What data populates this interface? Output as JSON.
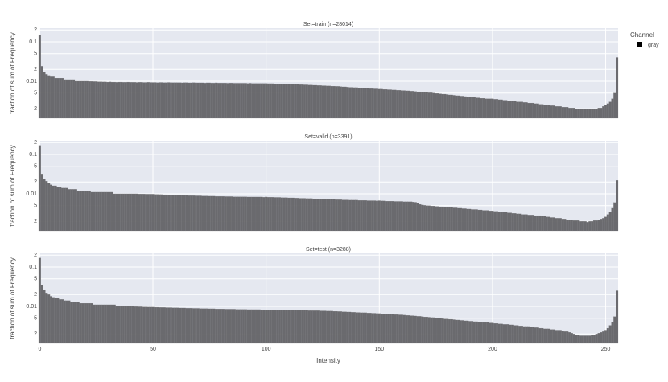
{
  "chart_data": {
    "type": "histogram",
    "xlabel": "Intensity",
    "ylabel": "fraction of sum of Frequency",
    "legend_title": "Channel",
    "legend_position": "top-right",
    "log_y": true,
    "grid": true,
    "series": [
      {
        "name": "gray",
        "color": "#636366"
      }
    ],
    "xlim": [
      -0.5,
      255.5
    ],
    "xticks": [
      0,
      50,
      100,
      150,
      200,
      250
    ],
    "ylim": [
      0.00115,
      0.222
    ],
    "yticks": [
      {
        "value": 0.002,
        "label": "2"
      },
      {
        "value": 0.005,
        "label": "5"
      },
      0.01,
      {
        "value": 0.02,
        "label": "2"
      },
      {
        "value": 0.05,
        "label": "5"
      },
      0.1,
      {
        "value": 0.2,
        "label": "2"
      }
    ],
    "bins": [
      -0.5,
      0.5,
      1.5,
      2.5,
      3.5,
      4.5,
      5.5,
      6.5,
      7.5,
      8.5,
      9.5,
      10.5,
      11.5,
      12.5,
      13.5,
      14.5,
      15.5,
      16.5,
      17.5,
      18.5,
      19.5,
      20.5,
      21.5,
      22.5,
      23.5,
      24.5,
      25.5,
      26.5,
      27.5,
      28.5,
      29.5,
      30.5,
      31.5,
      32.5,
      33.5,
      34.5,
      35.5,
      36.5,
      37.5,
      38.5,
      39.5,
      40.5,
      41.5,
      42.5,
      43.5,
      44.5,
      45.5,
      46.5,
      47.5,
      48.5,
      49.5,
      50.5,
      51.5,
      52.5,
      53.5,
      54.5,
      55.5,
      56.5,
      57.5,
      58.5,
      59.5,
      60.5,
      61.5,
      62.5,
      63.5,
      64.5,
      65.5,
      66.5,
      67.5,
      68.5,
      69.5,
      70.5,
      71.5,
      72.5,
      73.5,
      74.5,
      75.5,
      76.5,
      77.5,
      78.5,
      79.5,
      80.5,
      81.5,
      82.5,
      83.5,
      84.5,
      85.5,
      86.5,
      87.5,
      88.5,
      89.5,
      90.5,
      91.5,
      92.5,
      93.5,
      94.5,
      95.5,
      96.5,
      97.5,
      98.5,
      99.5,
      100.5,
      101.5,
      102.5,
      103.5,
      104.5,
      105.5,
      106.5,
      107.5,
      108.5,
      109.5,
      110.5,
      111.5,
      112.5,
      113.5,
      114.5,
      115.5,
      116.5,
      117.5,
      118.5,
      119.5,
      120.5,
      121.5,
      122.5,
      123.5,
      124.5,
      125.5,
      126.5,
      127.5,
      128.5,
      129.5,
      130.5,
      131.5,
      132.5,
      133.5,
      134.5,
      135.5,
      136.5,
      137.5,
      138.5,
      139.5,
      140.5,
      141.5,
      142.5,
      143.5,
      144.5,
      145.5,
      146.5,
      147.5,
      148.5,
      149.5,
      150.5,
      151.5,
      152.5,
      153.5,
      154.5,
      155.5,
      156.5,
      157.5,
      158.5,
      159.5,
      160.5,
      161.5,
      162.5,
      163.5,
      164.5,
      165.5,
      166.5,
      167.5,
      168.5,
      169.5,
      170.5,
      171.5,
      172.5,
      173.5,
      174.5,
      175.5,
      176.5,
      177.5,
      178.5,
      179.5,
      180.5,
      181.5,
      182.5,
      183.5,
      184.5,
      185.5,
      186.5,
      187.5,
      188.5,
      189.5,
      190.5,
      191.5,
      192.5,
      193.5,
      194.5,
      195.5,
      196.5,
      197.5,
      198.5,
      199.5,
      200.5,
      201.5,
      202.5,
      203.5,
      204.5,
      205.5,
      206.5,
      207.5,
      208.5,
      209.5,
      210.5,
      211.5,
      212.5,
      213.5,
      214.5,
      215.5,
      216.5,
      217.5,
      218.5,
      219.5,
      220.5,
      221.5,
      222.5,
      223.5,
      224.5,
      225.5,
      226.5,
      227.5,
      228.5,
      229.5,
      230.5,
      231.5,
      232.5,
      233.5,
      234.5,
      235.5,
      236.5,
      237.5,
      238.5,
      239.5,
      240.5,
      241.5,
      242.5,
      243.5,
      244.5,
      245.5,
      246.5,
      247.5,
      248.5,
      249.5,
      250.5,
      251.5,
      252.5,
      253.5,
      254.5,
      255.5
    ],
    "facets": [
      {
        "title": "Set=train (n=28014)",
        "values": [
          0.15,
          0.024,
          0.017,
          0.015,
          0.014,
          0.013,
          0.013,
          0.012,
          0.012,
          0.012,
          0.012,
          0.011,
          0.011,
          0.011,
          0.011,
          0.011,
          0.01,
          0.01,
          0.01,
          0.01,
          0.01,
          0.01,
          0.0099,
          0.0099,
          0.0098,
          0.0098,
          0.0097,
          0.0097,
          0.0096,
          0.0096,
          0.0095,
          0.0096,
          0.0095,
          0.0095,
          0.0094,
          0.0095,
          0.0095,
          0.0094,
          0.0094,
          0.0095,
          0.0094,
          0.0094,
          0.0094,
          0.0093,
          0.0094,
          0.0094,
          0.0093,
          0.0093,
          0.0094,
          0.0093,
          0.0093,
          0.0093,
          0.0092,
          0.0093,
          0.0093,
          0.0092,
          0.0092,
          0.0093,
          0.0092,
          0.0092,
          0.0092,
          0.0092,
          0.0092,
          0.0091,
          0.0092,
          0.0092,
          0.0091,
          0.0091,
          0.0092,
          0.0091,
          0.0091,
          0.0091,
          0.0091,
          0.009,
          0.0091,
          0.0091,
          0.009,
          0.009,
          0.0091,
          0.009,
          0.009,
          0.009,
          0.009,
          0.0089,
          0.009,
          0.009,
          0.0089,
          0.0089,
          0.0089,
          0.0089,
          0.0089,
          0.0089,
          0.0088,
          0.0089,
          0.0088,
          0.0088,
          0.0088,
          0.0088,
          0.0088,
          0.0088,
          0.0088,
          0.0087,
          0.0087,
          0.0087,
          0.0086,
          0.0086,
          0.0086,
          0.0085,
          0.0085,
          0.0085,
          0.0084,
          0.0084,
          0.0083,
          0.0083,
          0.0083,
          0.0082,
          0.0082,
          0.0081,
          0.0081,
          0.008,
          0.008,
          0.0079,
          0.0079,
          0.0078,
          0.0078,
          0.0077,
          0.0077,
          0.0076,
          0.0076,
          0.0075,
          0.0075,
          0.0074,
          0.0074,
          0.0073,
          0.0072,
          0.0072,
          0.0071,
          0.007,
          0.007,
          0.0069,
          0.0069,
          0.0068,
          0.0068,
          0.0067,
          0.0066,
          0.0066,
          0.0065,
          0.0065,
          0.0064,
          0.0064,
          0.0063,
          0.0063,
          0.0062,
          0.0062,
          0.0061,
          0.0061,
          0.006,
          0.006,
          0.0059,
          0.0059,
          0.0058,
          0.0058,
          0.0057,
          0.0057,
          0.0056,
          0.0056,
          0.0055,
          0.0054,
          0.0054,
          0.0053,
          0.0053,
          0.0052,
          0.0051,
          0.0051,
          0.005,
          0.0049,
          0.0049,
          0.0048,
          0.0047,
          0.0047,
          0.0046,
          0.0045,
          0.0045,
          0.0044,
          0.0043,
          0.0043,
          0.0042,
          0.0042,
          0.0041,
          0.004,
          0.004,
          0.0039,
          0.0039,
          0.0038,
          0.0038,
          0.0037,
          0.0037,
          0.0036,
          0.0036,
          0.0036,
          0.0036,
          0.0035,
          0.0035,
          0.0034,
          0.0034,
          0.0033,
          0.0033,
          0.0032,
          0.0032,
          0.0031,
          0.0031,
          0.003,
          0.003,
          0.003,
          0.0029,
          0.0029,
          0.0028,
          0.0028,
          0.0028,
          0.0027,
          0.0027,
          0.0026,
          0.0026,
          0.0025,
          0.0025,
          0.0025,
          0.0024,
          0.0024,
          0.0023,
          0.0023,
          0.0023,
          0.0022,
          0.0022,
          0.0022,
          0.0021,
          0.0021,
          0.0021,
          0.002,
          0.002,
          0.002,
          0.002,
          0.002,
          0.002,
          0.002,
          0.002,
          0.002,
          0.002,
          0.0021,
          0.0021,
          0.0023,
          0.0025,
          0.0027,
          0.003,
          0.0036,
          0.005,
          0.04
        ]
      },
      {
        "title": "Set=valid (n=3391)",
        "values": [
          0.17,
          0.032,
          0.024,
          0.021,
          0.019,
          0.017,
          0.016,
          0.016,
          0.015,
          0.015,
          0.014,
          0.014,
          0.014,
          0.013,
          0.013,
          0.013,
          0.013,
          0.012,
          0.012,
          0.012,
          0.012,
          0.012,
          0.012,
          0.011,
          0.011,
          0.011,
          0.011,
          0.011,
          0.011,
          0.011,
          0.011,
          0.011,
          0.011,
          0.01,
          0.01,
          0.01,
          0.01,
          0.01,
          0.01,
          0.01,
          0.01,
          0.01,
          0.01,
          0.01,
          0.0099,
          0.0099,
          0.0099,
          0.0098,
          0.0098,
          0.0098,
          0.0098,
          0.0097,
          0.0097,
          0.0096,
          0.0096,
          0.0095,
          0.0095,
          0.0094,
          0.0094,
          0.0093,
          0.0093,
          0.0092,
          0.0092,
          0.0092,
          0.0091,
          0.0091,
          0.009,
          0.009,
          0.009,
          0.0089,
          0.0089,
          0.0089,
          0.0088,
          0.0088,
          0.0088,
          0.0087,
          0.0087,
          0.0087,
          0.0086,
          0.0086,
          0.0086,
          0.0086,
          0.0085,
          0.0085,
          0.0085,
          0.0085,
          0.0084,
          0.0084,
          0.0084,
          0.0084,
          0.0084,
          0.0084,
          0.0083,
          0.0083,
          0.0083,
          0.0083,
          0.0083,
          0.0083,
          0.0083,
          0.0082,
          0.0083,
          0.0082,
          0.0082,
          0.0082,
          0.0081,
          0.0081,
          0.0081,
          0.008,
          0.008,
          0.008,
          0.0079,
          0.0079,
          0.0079,
          0.0078,
          0.0078,
          0.0077,
          0.0077,
          0.0077,
          0.0076,
          0.0076,
          0.0076,
          0.0075,
          0.0075,
          0.0074,
          0.0074,
          0.0074,
          0.0073,
          0.0073,
          0.0072,
          0.0072,
          0.0072,
          0.0071,
          0.0071,
          0.0071,
          0.007,
          0.007,
          0.007,
          0.0069,
          0.0069,
          0.0069,
          0.0069,
          0.0068,
          0.0068,
          0.0068,
          0.0068,
          0.0067,
          0.0067,
          0.0067,
          0.0067,
          0.0066,
          0.0067,
          0.0066,
          0.0066,
          0.0065,
          0.0065,
          0.0065,
          0.0065,
          0.0064,
          0.0064,
          0.0064,
          0.0064,
          0.0063,
          0.0063,
          0.0063,
          0.0063,
          0.0062,
          0.0061,
          0.0058,
          0.0054,
          0.0052,
          0.0051,
          0.005,
          0.005,
          0.0049,
          0.0049,
          0.0048,
          0.0048,
          0.0047,
          0.0047,
          0.0046,
          0.0046,
          0.0045,
          0.0045,
          0.0044,
          0.0044,
          0.0043,
          0.0043,
          0.0042,
          0.0042,
          0.0041,
          0.0041,
          0.004,
          0.004,
          0.004,
          0.0039,
          0.0039,
          0.0038,
          0.0038,
          0.0038,
          0.0037,
          0.0037,
          0.0036,
          0.0036,
          0.0035,
          0.0035,
          0.0034,
          0.0034,
          0.0033,
          0.0033,
          0.0032,
          0.0032,
          0.0031,
          0.0031,
          0.003,
          0.003,
          0.003,
          0.0029,
          0.0029,
          0.0029,
          0.0028,
          0.0028,
          0.0028,
          0.0027,
          0.0027,
          0.0026,
          0.0026,
          0.0025,
          0.0025,
          0.0024,
          0.0024,
          0.0024,
          0.0023,
          0.0023,
          0.0022,
          0.0022,
          0.0022,
          0.0021,
          0.0021,
          0.0021,
          0.002,
          0.002,
          0.002,
          0.0019,
          0.002,
          0.002,
          0.0021,
          0.0021,
          0.0022,
          0.0023,
          0.0024,
          0.0026,
          0.003,
          0.0035,
          0.0043,
          0.006,
          0.022
        ]
      },
      {
        "title": "Set=test (n=3288)",
        "values": [
          0.17,
          0.035,
          0.026,
          0.022,
          0.02,
          0.018,
          0.017,
          0.016,
          0.016,
          0.015,
          0.015,
          0.014,
          0.014,
          0.014,
          0.013,
          0.013,
          0.013,
          0.013,
          0.012,
          0.012,
          0.012,
          0.012,
          0.012,
          0.012,
          0.011,
          0.011,
          0.011,
          0.011,
          0.011,
          0.011,
          0.011,
          0.011,
          0.011,
          0.011,
          0.01,
          0.01,
          0.01,
          0.01,
          0.01,
          0.01,
          0.01,
          0.01,
          0.0099,
          0.0099,
          0.0098,
          0.0098,
          0.0097,
          0.0097,
          0.0096,
          0.0096,
          0.0096,
          0.0095,
          0.0095,
          0.0094,
          0.0094,
          0.0094,
          0.0093,
          0.0093,
          0.0093,
          0.0092,
          0.0092,
          0.0092,
          0.0091,
          0.0091,
          0.0091,
          0.009,
          0.009,
          0.009,
          0.0089,
          0.0089,
          0.0089,
          0.0088,
          0.0088,
          0.0088,
          0.0088,
          0.0087,
          0.0087,
          0.0087,
          0.0086,
          0.0086,
          0.0086,
          0.0086,
          0.0085,
          0.0085,
          0.0085,
          0.0085,
          0.0085,
          0.0084,
          0.0084,
          0.0084,
          0.0084,
          0.0084,
          0.0083,
          0.0083,
          0.0083,
          0.0083,
          0.0083,
          0.0083,
          0.0082,
          0.0082,
          0.0082,
          0.0082,
          0.0082,
          0.0082,
          0.0081,
          0.0081,
          0.0081,
          0.0081,
          0.0081,
          0.008,
          0.008,
          0.008,
          0.008,
          0.008,
          0.0079,
          0.0079,
          0.0079,
          0.0079,
          0.0079,
          0.0078,
          0.0078,
          0.0078,
          0.0078,
          0.0078,
          0.0077,
          0.0077,
          0.0077,
          0.0076,
          0.0076,
          0.0076,
          0.0075,
          0.0075,
          0.0074,
          0.0074,
          0.0073,
          0.0073,
          0.0072,
          0.0072,
          0.0071,
          0.0071,
          0.007,
          0.007,
          0.0069,
          0.0069,
          0.0069,
          0.0068,
          0.0068,
          0.0067,
          0.0067,
          0.0066,
          0.0066,
          0.0065,
          0.0065,
          0.0064,
          0.0064,
          0.0063,
          0.0063,
          0.0062,
          0.0062,
          0.0061,
          0.0061,
          0.006,
          0.0059,
          0.0059,
          0.0058,
          0.0058,
          0.0057,
          0.0056,
          0.0056,
          0.0055,
          0.0054,
          0.0054,
          0.0053,
          0.0052,
          0.0052,
          0.0051,
          0.005,
          0.005,
          0.0049,
          0.0048,
          0.0048,
          0.0047,
          0.0047,
          0.0046,
          0.0045,
          0.0045,
          0.0044,
          0.0044,
          0.0043,
          0.0043,
          0.0042,
          0.0042,
          0.0041,
          0.0041,
          0.004,
          0.004,
          0.0039,
          0.0039,
          0.0039,
          0.0038,
          0.0038,
          0.0037,
          0.0037,
          0.0036,
          0.0036,
          0.0035,
          0.0035,
          0.0035,
          0.0034,
          0.0034,
          0.0033,
          0.0033,
          0.0032,
          0.0032,
          0.0031,
          0.0031,
          0.0031,
          0.003,
          0.003,
          0.0029,
          0.0029,
          0.0028,
          0.0028,
          0.0027,
          0.0027,
          0.0027,
          0.0026,
          0.0026,
          0.0025,
          0.0025,
          0.0025,
          0.0024,
          0.0023,
          0.0023,
          0.0022,
          0.0021,
          0.002,
          0.0019,
          0.0019,
          0.0018,
          0.0018,
          0.0018,
          0.0018,
          0.0018,
          0.0019,
          0.0019,
          0.002,
          0.0021,
          0.0022,
          0.0023,
          0.0025,
          0.0028,
          0.0033,
          0.004,
          0.0055,
          0.025
        ]
      }
    ]
  }
}
